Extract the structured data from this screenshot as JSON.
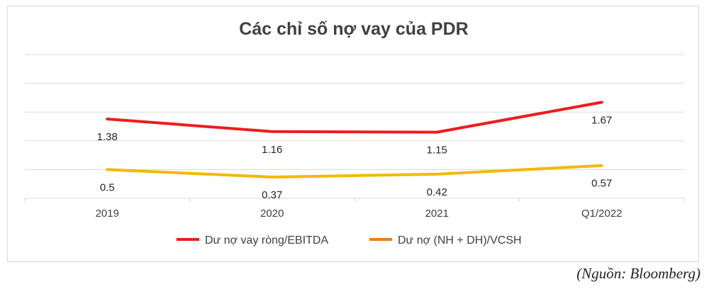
{
  "source_note": "(Nguồn: Bloomberg)",
  "chart_data": {
    "type": "line",
    "title": "Các chỉ số nợ vay của PDR",
    "xlabel": "",
    "ylabel": "",
    "categories": [
      "2019",
      "2020",
      "2021",
      "Q1/2022"
    ],
    "ylim": [
      0,
      2.5
    ],
    "grid": true,
    "legend_position": "bottom",
    "series": [
      {
        "name": "Dư nợ vay ròng/EBITDA",
        "values": [
          1.38,
          1.16,
          1.15,
          1.67
        ],
        "color": "#ee1c1c",
        "label_position": "below"
      },
      {
        "name": "Dư nợ (NH + DH)/VCSH",
        "values": [
          0.5,
          0.37,
          0.42,
          0.57
        ],
        "color": "#f5b800",
        "legend_color": "#ee7d1a",
        "label_position": "below"
      }
    ]
  }
}
